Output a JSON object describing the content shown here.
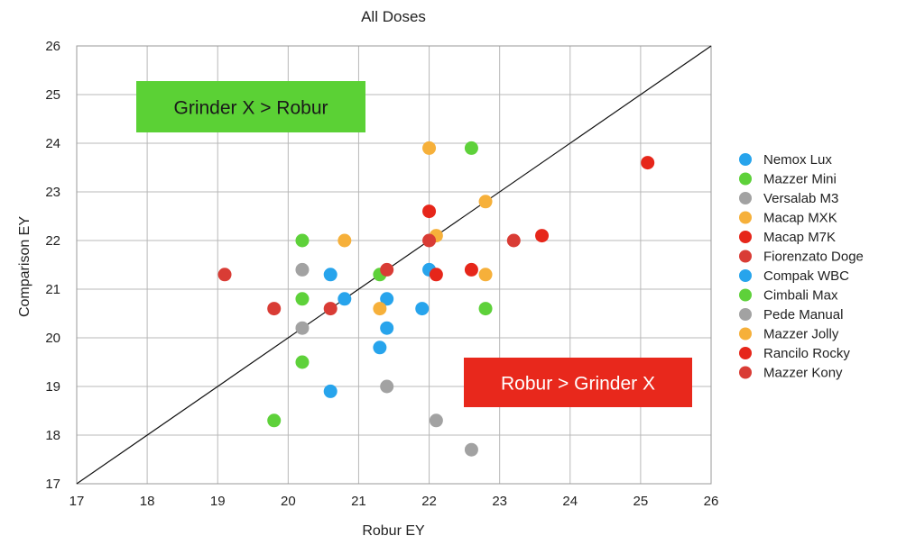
{
  "chart_data": {
    "type": "scatter",
    "title": "All Doses",
    "xlabel": "Robur EY",
    "ylabel": "Comparison EY",
    "xlim": [
      17,
      26
    ],
    "ylim": [
      17,
      26
    ],
    "xticks": [
      17,
      18,
      19,
      20,
      21,
      22,
      23,
      24,
      25,
      26
    ],
    "yticks": [
      17,
      18,
      19,
      20,
      21,
      22,
      23,
      24,
      25,
      26
    ],
    "grid": true,
    "legend_position": "right",
    "reference_line": {
      "x": [
        17,
        26
      ],
      "y": [
        17,
        26
      ]
    },
    "annotations": [
      {
        "text": "Grinder X > Robur",
        "background": "#5bd135",
        "text_color": "#1a1a1a",
        "position": "top-left"
      },
      {
        "text": "Robur > Grinder X",
        "background": "#e8281c",
        "text_color": "#ffffff",
        "position": "bottom-right"
      }
    ],
    "series": [
      {
        "name": "Nemox Lux",
        "color": "#27a4ec",
        "points": [
          [
            20.6,
            21.3
          ],
          [
            20.8,
            20.8
          ],
          [
            20.6,
            18.9
          ],
          [
            21.4,
            20.8
          ],
          [
            21.4,
            20.2
          ],
          [
            21.3,
            19.8
          ],
          [
            21.9,
            20.6
          ],
          [
            22.0,
            21.4
          ]
        ]
      },
      {
        "name": "Mazzer Mini",
        "color": "#5ed13a",
        "points": [
          [
            20.2,
            22.0
          ],
          [
            20.2,
            20.8
          ],
          [
            20.2,
            19.5
          ],
          [
            19.8,
            18.3
          ],
          [
            21.3,
            21.3
          ],
          [
            22.6,
            23.9
          ],
          [
            22.8,
            20.6
          ]
        ]
      },
      {
        "name": "Versalab M3",
        "color": "#a2a2a2",
        "points": [
          [
            20.2,
            21.4
          ],
          [
            20.2,
            20.2
          ],
          [
            21.4,
            19.0
          ],
          [
            22.1,
            18.3
          ],
          [
            22.6,
            17.7
          ]
        ]
      },
      {
        "name": "Macap MXK",
        "color": "#f6b03a",
        "points": [
          [
            20.8,
            22.0
          ],
          [
            21.3,
            20.6
          ],
          [
            22.0,
            23.9
          ],
          [
            22.1,
            22.1
          ],
          [
            22.8,
            22.8
          ],
          [
            22.8,
            21.3
          ]
        ]
      },
      {
        "name": "Macap M7K",
        "color": "#e6261a",
        "points": [
          [
            22.0,
            22.6
          ],
          [
            22.1,
            21.3
          ],
          [
            22.6,
            21.4
          ],
          [
            23.6,
            22.1
          ],
          [
            25.1,
            23.6
          ]
        ]
      },
      {
        "name": "Fiorenzato Doge",
        "color": "#d93c35",
        "points": [
          [
            19.1,
            21.3
          ],
          [
            19.8,
            20.6
          ],
          [
            20.6,
            20.6
          ],
          [
            21.4,
            21.4
          ],
          [
            22.0,
            22.0
          ],
          [
            23.2,
            22.0
          ]
        ]
      },
      {
        "name": "Compak WBC",
        "color": "#27a4ec",
        "points": []
      },
      {
        "name": "Cimbali Max",
        "color": "#5ed13a",
        "points": []
      },
      {
        "name": "Pede Manual",
        "color": "#a2a2a2",
        "points": []
      },
      {
        "name": "Mazzer Jolly",
        "color": "#f6b03a",
        "points": []
      },
      {
        "name": "Rancilo Rocky",
        "color": "#e6261a",
        "points": []
      },
      {
        "name": "Mazzer Kony",
        "color": "#d93c35",
        "points": []
      }
    ]
  }
}
